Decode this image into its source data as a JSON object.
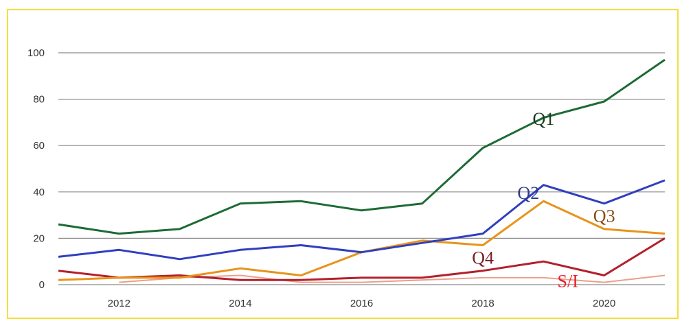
{
  "chart_data": {
    "type": "line",
    "title": "",
    "xlabel": "",
    "ylabel": "",
    "x": [
      2011,
      2012,
      2013,
      2014,
      2015,
      2016,
      2017,
      2018,
      2019,
      2020,
      2021
    ],
    "xticks": [
      2012,
      2014,
      2016,
      2018,
      2020
    ],
    "yticks": [
      0,
      20,
      40,
      60,
      80,
      100
    ],
    "xlim": [
      2011,
      2021
    ],
    "ylim": [
      0,
      100
    ],
    "grid": true,
    "legend": "none",
    "series": [
      {
        "name": "Q1",
        "color": "#1d6b35",
        "values": [
          26,
          22,
          24,
          35,
          36,
          32,
          35,
          59,
          72,
          79,
          97
        ]
      },
      {
        "name": "Q2",
        "color": "#2f3fbf",
        "values": [
          12,
          15,
          11,
          15,
          17,
          14,
          18,
          22,
          43,
          35,
          45
        ]
      },
      {
        "name": "Q3",
        "color": "#e8931a",
        "values": [
          2,
          3,
          3,
          7,
          4,
          14,
          19,
          17,
          36,
          24,
          22
        ]
      },
      {
        "name": "Q4",
        "color": "#b3202c",
        "values": [
          6,
          3,
          4,
          2,
          2,
          3,
          3,
          6,
          10,
          4,
          20
        ]
      },
      {
        "name": "S/I",
        "color": "#eaa08a",
        "values": [
          null,
          1,
          3,
          4,
          1,
          1,
          2,
          3,
          3,
          1,
          4
        ]
      }
    ],
    "annotations": [
      {
        "text": "Q1",
        "color": "#1d3a1f",
        "x": 2019,
        "y": 69
      },
      {
        "text": "Q2",
        "color": "#2d3a8f",
        "x": 2018.75,
        "y": 37
      },
      {
        "text": "Q3",
        "color": "#8a4a14",
        "x": 2020,
        "y": 27
      },
      {
        "text": "Q4",
        "color": "#7a1d24",
        "x": 2018,
        "y": 9
      },
      {
        "text": "S/I",
        "color": "#e8202a",
        "x": 2019.4,
        "y": -1
      }
    ]
  }
}
